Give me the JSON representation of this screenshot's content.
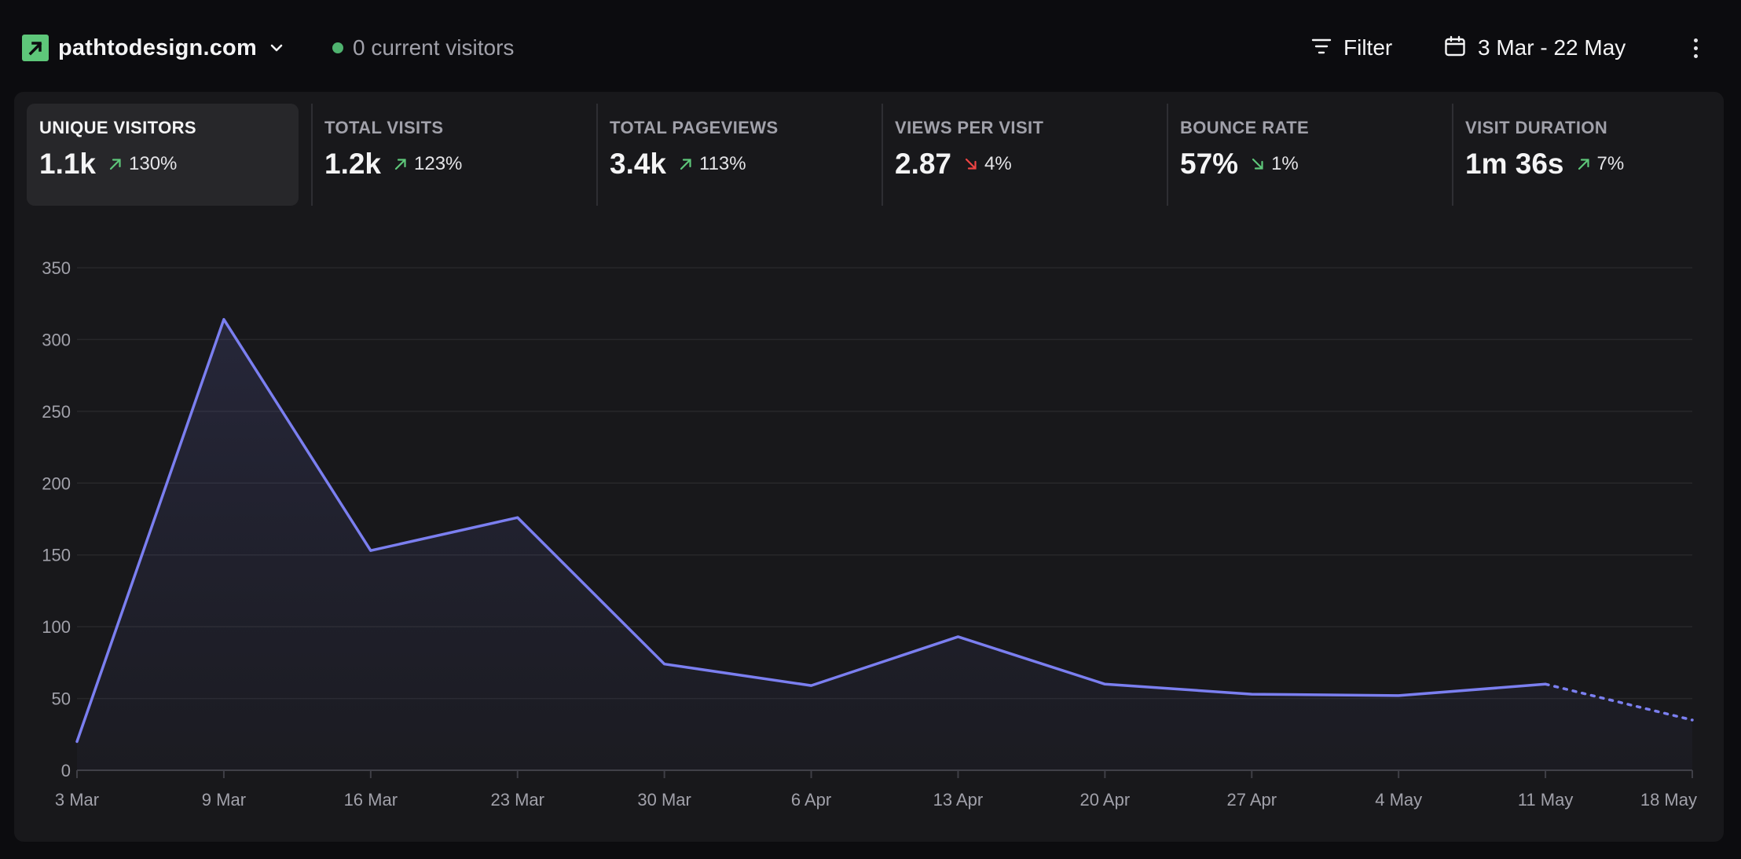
{
  "header": {
    "site_name": "pathtodesign.com",
    "current_visitors": "0 current visitors",
    "filter_label": "Filter",
    "date_range": "3 Mar - 22 May",
    "logo_icon": "arrow-up-right-logo-icon",
    "brand_color": "#5ec77a"
  },
  "stats": [
    {
      "label": "UNIQUE VISITORS",
      "value": "1.1k",
      "change": "130%",
      "direction": "up",
      "active": true
    },
    {
      "label": "TOTAL VISITS",
      "value": "1.2k",
      "change": "123%",
      "direction": "up",
      "active": false
    },
    {
      "label": "TOTAL PAGEVIEWS",
      "value": "3.4k",
      "change": "113%",
      "direction": "up",
      "active": false
    },
    {
      "label": "VIEWS PER VISIT",
      "value": "2.87",
      "change": "4%",
      "direction": "down",
      "change_color": "#ef4444",
      "active": false
    },
    {
      "label": "BOUNCE RATE",
      "value": "57%",
      "change": "1%",
      "direction": "down",
      "change_color": "#5ec77a",
      "active": false
    },
    {
      "label": "VISIT DURATION",
      "value": "1m 36s",
      "change": "7%",
      "direction": "up",
      "active": false
    }
  ],
  "colors": {
    "up": "#5ec77a",
    "down_bad": "#ef4444",
    "line": "#7b7ff0"
  },
  "chart_data": {
    "type": "line",
    "categories": [
      "3 Mar",
      "9 Mar",
      "16 Mar",
      "23 Mar",
      "30 Mar",
      "6 Apr",
      "13 Apr",
      "20 Apr",
      "27 Apr",
      "4 May",
      "11 May",
      "18 May"
    ],
    "series": [
      {
        "values": [
          20,
          314,
          153,
          176,
          74,
          59,
          93,
          60,
          53,
          52,
          60,
          35
        ]
      }
    ],
    "incomplete_from_index": 10,
    "y_ticks": [
      0,
      50,
      100,
      150,
      200,
      250,
      300,
      350
    ],
    "ylim": [
      0,
      350
    ],
    "grid": true,
    "area_fill": true,
    "line_color": "#7b7ff0"
  }
}
